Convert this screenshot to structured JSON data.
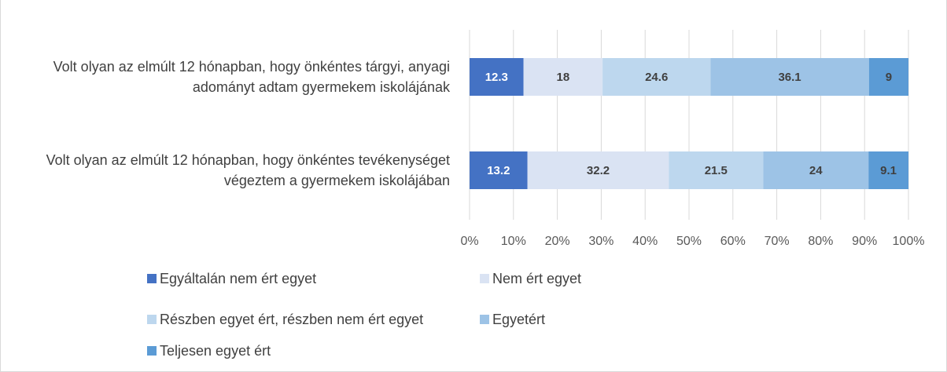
{
  "chart_data": {
    "type": "stacked_barh",
    "legend": "bottom",
    "grid": true,
    "categories": [
      "Volt olyan az elmúlt 12 hónapban, hogy önkéntes tárgyi, anyagi adományt adtam gyermekem iskolájának",
      "Volt olyan az elmúlt 12 hónapban, hogy önkéntes tevékenységet végeztem a gyermekem iskolájában"
    ],
    "series": [
      {
        "name": "Egyáltalán nem ért egyet",
        "color": "#4472c4",
        "values": [
          12.3,
          13.2
        ]
      },
      {
        "name": "Nem ért egyet",
        "color": "#dae3f3",
        "values": [
          18,
          32.2
        ]
      },
      {
        "name": "Részben egyet ért, részben nem ért egyet",
        "color": "#bdd7ee",
        "values": [
          24.6,
          21.5
        ]
      },
      {
        "name": "Egyetért",
        "color": "#9dc3e6",
        "values": [
          36.1,
          24
        ]
      },
      {
        "name": "Teljesen egyet ért",
        "color": "#5b9bd5",
        "values": [
          9,
          9.1
        ]
      }
    ],
    "xlim": [
      0,
      100
    ],
    "xticks": [
      {
        "value": 0,
        "label": "0%"
      },
      {
        "value": 10,
        "label": "10%"
      },
      {
        "value": 20,
        "label": "20%"
      },
      {
        "value": 30,
        "label": "30%"
      },
      {
        "value": 40,
        "label": "40%"
      },
      {
        "value": 50,
        "label": "50%"
      },
      {
        "value": 60,
        "label": "60%"
      },
      {
        "value": 70,
        "label": "70%"
      },
      {
        "value": 80,
        "label": "80%"
      },
      {
        "value": 90,
        "label": "90%"
      },
      {
        "value": 100,
        "label": "100%"
      }
    ]
  }
}
